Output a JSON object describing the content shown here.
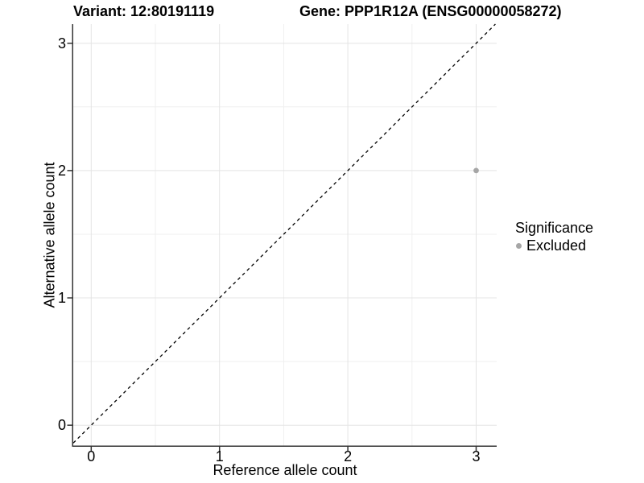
{
  "chart_data": {
    "type": "scatter",
    "title_left": "Variant: 12:80191119",
    "title_right": "Gene: PPP1R12A (ENSG00000058272)",
    "xlabel": "Reference allele count",
    "ylabel": "Alternative allele count",
    "x_ticks": [
      0,
      1,
      2,
      3
    ],
    "y_ticks": [
      0,
      1,
      2,
      3
    ],
    "x_minor_ticks": [
      0.5,
      1.5,
      2.5
    ],
    "y_minor_ticks": [
      0.5,
      1.5,
      2.5
    ],
    "xlim": [
      -0.14,
      3.16
    ],
    "ylim": [
      -0.16,
      3.15
    ],
    "grid": "major and minor gridlines on",
    "legend_position": "right",
    "series": [
      {
        "name": "Excluded",
        "color": "#a6a6a6",
        "points": [
          {
            "x": 3,
            "y": 2
          }
        ]
      }
    ],
    "reference_line": {
      "kind": "identity y=x",
      "style": "dashed",
      "color": "#000000"
    }
  },
  "legend": {
    "title": "Significance",
    "items": [
      {
        "label": "Excluded",
        "color": "#a6a6a6",
        "marker": "dot-icon"
      }
    ]
  },
  "colors": {
    "background": "#ffffff",
    "axis_line": "#333333",
    "tick_mark": "#333333",
    "major_grid": "#e4e4e4",
    "minor_grid": "#efefef",
    "text": "#000000",
    "point": "#a6a6a6"
  }
}
